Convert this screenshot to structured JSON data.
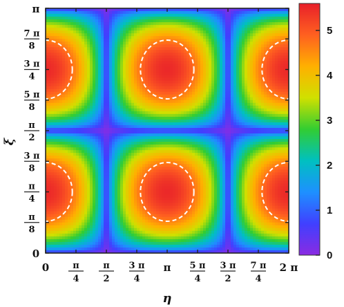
{
  "chart_data": {
    "type": "heatmap",
    "title": "",
    "xlabel": "η",
    "ylabel": "ξ",
    "x_range": [
      "0",
      "2π"
    ],
    "y_range": [
      "0",
      "π"
    ],
    "x_ticks": [
      {
        "value": 0,
        "num": "0",
        "den": ""
      },
      {
        "value": 0.125,
        "num": "π",
        "den": "4"
      },
      {
        "value": 0.25,
        "num": "π",
        "den": "2"
      },
      {
        "value": 0.375,
        "num": "3 π",
        "den": "4"
      },
      {
        "value": 0.5,
        "num": "π",
        "den": ""
      },
      {
        "value": 0.625,
        "num": "5 π",
        "den": "4"
      },
      {
        "value": 0.75,
        "num": "3 π",
        "den": "2"
      },
      {
        "value": 0.875,
        "num": "7 π",
        "den": "4"
      },
      {
        "value": 1,
        "num": "2 π",
        "den": ""
      }
    ],
    "y_ticks": [
      {
        "value": 0,
        "num": "0",
        "den": ""
      },
      {
        "value": 0.125,
        "num": "π",
        "den": "8"
      },
      {
        "value": 0.25,
        "num": "π",
        "den": "4"
      },
      {
        "value": 0.375,
        "num": "3 π",
        "den": "8"
      },
      {
        "value": 0.5,
        "num": "π",
        "den": "2"
      },
      {
        "value": 0.625,
        "num": "5 π",
        "den": "8"
      },
      {
        "value": 0.75,
        "num": "3 π",
        "den": "4"
      },
      {
        "value": 0.875,
        "num": "7 π",
        "den": "8"
      },
      {
        "value": 1,
        "num": "π",
        "den": ""
      }
    ],
    "colorbar": {
      "min": 0,
      "max": 5.6,
      "ticks": [
        "0",
        "1",
        "2",
        "3",
        "4",
        "5"
      ],
      "colormap": [
        "#8a2be2",
        "#4040ff",
        "#1e90ff",
        "#00c0c0",
        "#32cd32",
        "#d0e000",
        "#ffb000",
        "#ff6020",
        "#e8202a"
      ]
    },
    "peaks": [
      {
        "eta": 0,
        "xi": 0.25,
        "value": 5.5
      },
      {
        "eta": 0.5,
        "xi": 0.25,
        "value": 5.5
      },
      {
        "eta": 1,
        "xi": 0.25,
        "value": 5.5
      },
      {
        "eta": 0,
        "xi": 0.75,
        "value": 5.5
      },
      {
        "eta": 0.5,
        "xi": 0.75,
        "value": 5.5
      },
      {
        "eta": 1,
        "xi": 0.75,
        "value": 5.5
      }
    ],
    "contour_level": 4.5,
    "contour_style": "white dashed"
  }
}
